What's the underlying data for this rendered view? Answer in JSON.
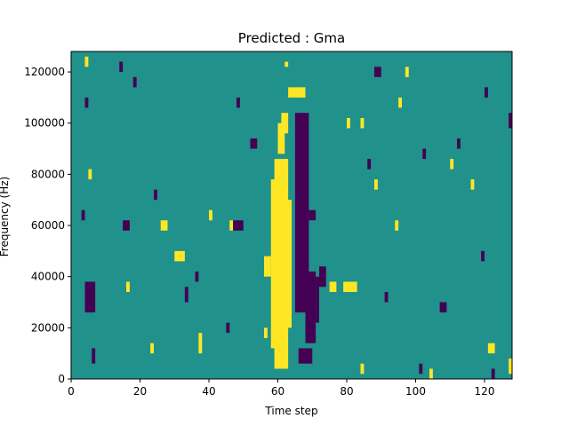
{
  "chart_data": {
    "type": "heatmap",
    "title": "Predicted : Gma",
    "xlabel": "Time step",
    "ylabel": "Frequency (Hz)",
    "xlim": [
      0,
      128
    ],
    "ylim": [
      0,
      128000
    ],
    "x_ticks": [
      0,
      20,
      40,
      60,
      80,
      100,
      120
    ],
    "y_ticks": [
      0,
      20000,
      40000,
      60000,
      80000,
      100000,
      120000
    ],
    "x_tick_labels": [
      "0",
      "20",
      "40",
      "60",
      "80",
      "100",
      "120"
    ],
    "y_tick_labels": [
      "0",
      "20000",
      "40000",
      "60000",
      "80000",
      "100000",
      "120000"
    ],
    "grid": false,
    "legend": "none",
    "colormap": "viridis",
    "colors": {
      "background": "#21918c",
      "high": "#fde725",
      "low": "#440154"
    },
    "description": "Binary-like spectrogram mask: mostly mid value with scattered high (yellow) and low (purple) cells; dense high band near time steps 59-63 below ~85000 Hz and dense low band near time steps 65-70 below ~105000 Hz.",
    "cells": {
      "units": "[time_start, time_end, freq_start_hz, freq_end_hz]",
      "high": [
        [
          59,
          63,
          4000,
          86000
        ],
        [
          58,
          60,
          12000,
          78000
        ],
        [
          62,
          64,
          20000,
          70000
        ],
        [
          61,
          63,
          96000,
          104000
        ],
        [
          60,
          62,
          88000,
          100000
        ],
        [
          63,
          68,
          110000,
          114000
        ],
        [
          56,
          58,
          40000,
          48000
        ],
        [
          56,
          57,
          16000,
          20000
        ],
        [
          62,
          63,
          122000,
          124000
        ],
        [
          75,
          77,
          34000,
          38000
        ],
        [
          79,
          83,
          34000,
          38000
        ],
        [
          84,
          85,
          2000,
          6000
        ],
        [
          26,
          28,
          58000,
          62000
        ],
        [
          30,
          33,
          46000,
          50000
        ],
        [
          37,
          38,
          10000,
          18000
        ],
        [
          40,
          41,
          62000,
          66000
        ],
        [
          46,
          47,
          58000,
          62000
        ],
        [
          23,
          24,
          10000,
          14000
        ],
        [
          16,
          17,
          34000,
          38000
        ],
        [
          4,
          5,
          122000,
          126000
        ],
        [
          88,
          89,
          74000,
          78000
        ],
        [
          94,
          95,
          58000,
          62000
        ],
        [
          95,
          96,
          106000,
          110000
        ],
        [
          97,
          98,
          118000,
          122000
        ],
        [
          104,
          105,
          0,
          4000
        ],
        [
          121,
          123,
          10000,
          14000
        ],
        [
          127,
          128,
          2000,
          8000
        ],
        [
          110,
          111,
          82000,
          86000
        ],
        [
          116,
          117,
          74000,
          78000
        ],
        [
          80,
          81,
          98000,
          102000
        ],
        [
          84,
          85,
          98000,
          102000
        ],
        [
          5,
          6,
          78000,
          82000
        ]
      ],
      "low": [
        [
          65,
          69,
          26000,
          104000
        ],
        [
          68,
          71,
          14000,
          42000
        ],
        [
          66,
          70,
          6000,
          12000
        ],
        [
          71,
          72,
          22000,
          40000
        ],
        [
          72,
          74,
          36000,
          44000
        ],
        [
          69,
          71,
          62000,
          66000
        ],
        [
          47,
          50,
          58000,
          62000
        ],
        [
          52,
          54,
          90000,
          94000
        ],
        [
          15,
          17,
          58000,
          62000
        ],
        [
          4,
          7,
          26000,
          38000
        ],
        [
          3,
          4,
          62000,
          66000
        ],
        [
          6,
          7,
          6000,
          12000
        ],
        [
          33,
          34,
          30000,
          36000
        ],
        [
          36,
          37,
          38000,
          42000
        ],
        [
          45,
          46,
          18000,
          22000
        ],
        [
          48,
          49,
          106000,
          110000
        ],
        [
          86,
          87,
          82000,
          86000
        ],
        [
          91,
          92,
          30000,
          34000
        ],
        [
          101,
          102,
          2000,
          6000
        ],
        [
          107,
          109,
          26000,
          30000
        ],
        [
          119,
          120,
          46000,
          50000
        ],
        [
          122,
          123,
          0,
          4000
        ],
        [
          127,
          128,
          98000,
          104000
        ],
        [
          112,
          113,
          90000,
          94000
        ],
        [
          88,
          90,
          118000,
          122000
        ],
        [
          102,
          103,
          86000,
          90000
        ],
        [
          14,
          15,
          120000,
          124000
        ],
        [
          120,
          121,
          110000,
          114000
        ],
        [
          4,
          5,
          106000,
          110000
        ],
        [
          18,
          19,
          114000,
          118000
        ],
        [
          24,
          25,
          70000,
          74000
        ]
      ]
    }
  }
}
